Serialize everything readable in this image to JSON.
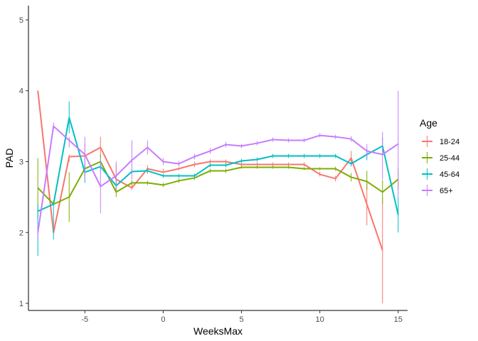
{
  "chart_data": {
    "type": "line",
    "title": "",
    "xlabel": "WeeksMax",
    "ylabel": "PAD",
    "xlim": [
      -8.6,
      15.6
    ],
    "ylim": [
      0.9,
      5.2
    ],
    "xticks": [
      -5,
      0,
      5,
      10,
      15
    ],
    "yticks": [
      1,
      2,
      3,
      4,
      5
    ],
    "xtick_labels": [
      "-5",
      "0",
      "5",
      "10",
      "15"
    ],
    "ytick_labels": [
      "1",
      "2",
      "3",
      "4",
      "5"
    ],
    "grid": false,
    "legend": {
      "title": "Age",
      "position": "right"
    },
    "x": [
      -8,
      -7,
      -6,
      -5,
      -4,
      -3,
      -2,
      -1,
      0,
      1,
      2,
      3,
      4,
      5,
      6,
      7,
      8,
      9,
      10,
      11,
      12,
      13,
      14,
      15
    ],
    "series": [
      {
        "name": "18-24",
        "color": "#F8766D",
        "x": [
          -8,
          -7,
          -6,
          -5,
          -4,
          -3,
          -2,
          -1,
          0,
          1,
          2,
          3,
          4,
          5,
          6,
          7,
          8,
          9,
          10,
          11,
          12,
          13,
          14
        ],
        "values": [
          4.0,
          2.0,
          3.07,
          3.08,
          3.2,
          2.75,
          2.63,
          2.9,
          2.85,
          2.9,
          2.96,
          3.0,
          3.0,
          2.96,
          2.96,
          2.96,
          2.96,
          2.96,
          2.82,
          2.76,
          3.05,
          2.4,
          1.75
        ],
        "err_low": [
          4.0,
          2.0,
          3.0,
          3.0,
          3.05,
          2.6,
          2.6,
          2.85,
          2.85,
          2.88,
          2.92,
          2.97,
          2.97,
          2.93,
          2.93,
          2.93,
          2.93,
          2.93,
          2.79,
          2.72,
          2.95,
          2.1,
          1.0
        ],
        "err_high": [
          4.0,
          2.0,
          3.1,
          3.25,
          3.35,
          2.95,
          2.68,
          2.95,
          2.9,
          2.92,
          3.0,
          3.03,
          3.03,
          2.99,
          2.99,
          2.99,
          2.99,
          2.99,
          2.86,
          2.8,
          3.15,
          2.7,
          2.5
        ]
      },
      {
        "name": "25-44",
        "color": "#7CAE00",
        "x": [
          -8,
          -7,
          -6,
          -5,
          -4,
          -3,
          -2,
          -1,
          0,
          1,
          2,
          3,
          4,
          5,
          6,
          7,
          8,
          9,
          10,
          11,
          12,
          13,
          14,
          15
        ],
        "values": [
          2.63,
          2.4,
          2.5,
          2.9,
          3.0,
          2.57,
          2.7,
          2.7,
          2.67,
          2.73,
          2.77,
          2.87,
          2.87,
          2.92,
          2.92,
          2.92,
          2.92,
          2.9,
          2.9,
          2.9,
          2.78,
          2.72,
          2.57,
          2.75
        ],
        "err_low": [
          2.2,
          2.38,
          2.15,
          2.8,
          2.9,
          2.5,
          2.66,
          2.67,
          2.64,
          2.7,
          2.74,
          2.84,
          2.84,
          2.9,
          2.9,
          2.9,
          2.9,
          2.88,
          2.88,
          2.87,
          2.72,
          2.6,
          2.4,
          2.6
        ],
        "err_high": [
          3.05,
          2.42,
          2.85,
          3.0,
          3.1,
          2.65,
          2.74,
          2.73,
          2.7,
          2.76,
          2.8,
          2.9,
          2.9,
          2.94,
          2.94,
          2.94,
          2.94,
          2.92,
          2.92,
          2.93,
          2.84,
          2.87,
          2.74,
          2.9
        ]
      },
      {
        "name": "45-64",
        "color": "#00BFC4",
        "x": [
          -8,
          -7,
          -6,
          -5,
          -4,
          -3,
          -2,
          -1,
          0,
          1,
          2,
          3,
          4,
          5,
          6,
          7,
          8,
          9,
          10,
          11,
          12,
          13,
          14,
          15
        ],
        "values": [
          2.3,
          2.4,
          3.62,
          2.85,
          2.93,
          2.66,
          2.86,
          2.87,
          2.8,
          2.8,
          2.8,
          2.95,
          2.95,
          3.01,
          3.03,
          3.08,
          3.08,
          3.08,
          3.08,
          3.08,
          2.97,
          3.1,
          3.22,
          2.25
        ],
        "err_low": [
          1.67,
          1.9,
          3.4,
          2.7,
          2.85,
          2.6,
          2.82,
          2.83,
          2.77,
          2.77,
          2.77,
          2.92,
          2.92,
          2.98,
          3.0,
          3.05,
          3.05,
          3.05,
          3.05,
          3.05,
          2.93,
          3.02,
          3.1,
          2.0
        ],
        "err_high": [
          2.4,
          2.45,
          3.85,
          2.95,
          3.01,
          2.72,
          2.9,
          2.91,
          2.83,
          2.83,
          2.83,
          2.98,
          2.98,
          3.04,
          3.06,
          3.11,
          3.11,
          3.11,
          3.11,
          3.11,
          3.01,
          3.18,
          3.34,
          2.5
        ]
      },
      {
        "name": "65+",
        "color": "#C77CFF",
        "x": [
          -8,
          -7,
          -6,
          -5,
          -4,
          -3,
          -2,
          -1,
          0,
          1,
          2,
          3,
          4,
          5,
          6,
          7,
          8,
          9,
          10,
          11,
          12,
          13,
          14,
          15
        ],
        "values": [
          2.0,
          3.5,
          3.3,
          3.1,
          2.65,
          2.8,
          3.02,
          3.2,
          3.0,
          2.97,
          3.07,
          3.15,
          3.24,
          3.22,
          3.26,
          3.31,
          3.3,
          3.3,
          3.37,
          3.35,
          3.32,
          3.15,
          3.1,
          3.25
        ],
        "err_low": [
          1.9,
          3.45,
          3.2,
          2.75,
          2.27,
          2.6,
          2.75,
          3.1,
          2.95,
          2.93,
          3.03,
          3.11,
          3.2,
          3.19,
          3.23,
          3.28,
          3.27,
          3.27,
          3.34,
          3.32,
          3.28,
          3.05,
          2.75,
          2.5
        ],
        "err_high": [
          2.1,
          3.55,
          3.35,
          3.35,
          3.05,
          3.0,
          3.3,
          3.3,
          3.05,
          3.01,
          3.11,
          3.19,
          3.28,
          3.25,
          3.29,
          3.34,
          3.33,
          3.33,
          3.4,
          3.38,
          3.36,
          3.25,
          3.42,
          4.0
        ]
      }
    ]
  }
}
